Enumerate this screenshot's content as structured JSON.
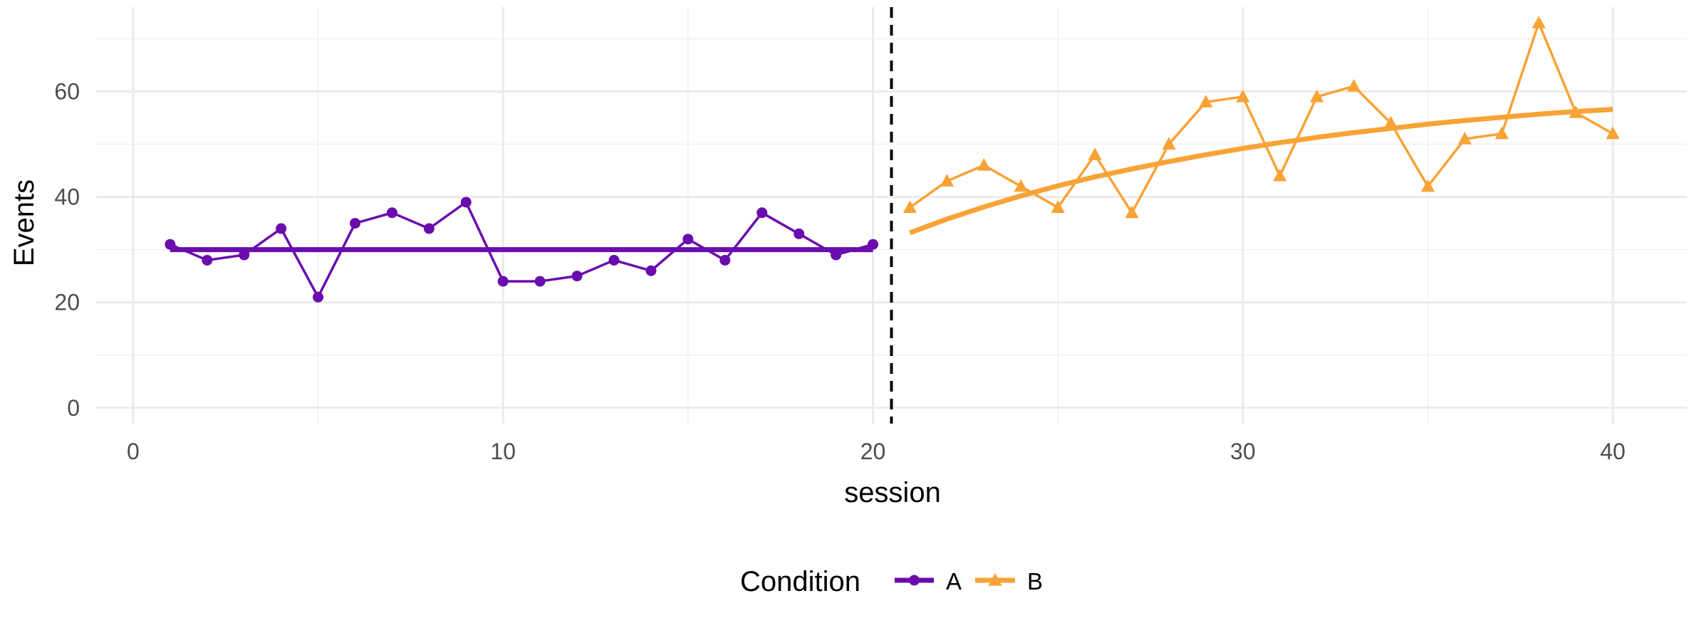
{
  "chart_data": {
    "type": "line",
    "xlabel": "session",
    "ylabel": "Events",
    "xlim": [
      -1,
      42
    ],
    "ylim": [
      -3,
      76
    ],
    "x_ticks": [
      0,
      10,
      20,
      30,
      40
    ],
    "y_ticks": [
      0,
      20,
      40,
      60
    ],
    "x_tick_labels": [
      "0",
      "10",
      "20",
      "30",
      "40"
    ],
    "y_tick_labels": [
      "0",
      "20",
      "40",
      "60"
    ],
    "grid": true,
    "phase_change_x": 20.5,
    "legend": {
      "title": "Condition",
      "position": "bottom"
    },
    "series": [
      {
        "name": "A",
        "color": "#6a0dad",
        "marker": "circle",
        "x": [
          1,
          2,
          3,
          4,
          5,
          6,
          7,
          8,
          9,
          10,
          11,
          12,
          13,
          14,
          15,
          16,
          17,
          18,
          19,
          20
        ],
        "values": [
          31,
          28,
          29,
          34,
          21,
          35,
          37,
          34,
          39,
          24,
          24,
          25,
          28,
          26,
          32,
          28,
          37,
          33,
          29,
          31
        ],
        "trend": {
          "type": "constant",
          "x": [
            1,
            20
          ],
          "y": [
            30,
            30
          ]
        }
      },
      {
        "name": "B",
        "color": "#f8a336",
        "marker": "triangle",
        "x": [
          21,
          22,
          23,
          24,
          25,
          26,
          27,
          28,
          29,
          30,
          31,
          32,
          33,
          34,
          35,
          36,
          37,
          38,
          39,
          40
        ],
        "values": [
          38,
          43,
          46,
          42,
          38,
          48,
          37,
          50,
          58,
          59,
          44,
          59,
          61,
          54,
          42,
          51,
          52,
          73,
          56,
          52
        ],
        "trend": {
          "type": "curve",
          "x": [
            21,
            22,
            23,
            24,
            25,
            26,
            27,
            28,
            29,
            30,
            31,
            32,
            33,
            34,
            35,
            36,
            37,
            38,
            39,
            40
          ],
          "y": [
            33.2,
            35.8,
            38.1,
            40.2,
            42.1,
            43.8,
            45.3,
            46.7,
            48.0,
            49.2,
            50.3,
            51.3,
            52.2,
            53.0,
            53.8,
            54.5,
            55.1,
            55.7,
            56.2,
            56.6
          ]
        }
      }
    ]
  }
}
